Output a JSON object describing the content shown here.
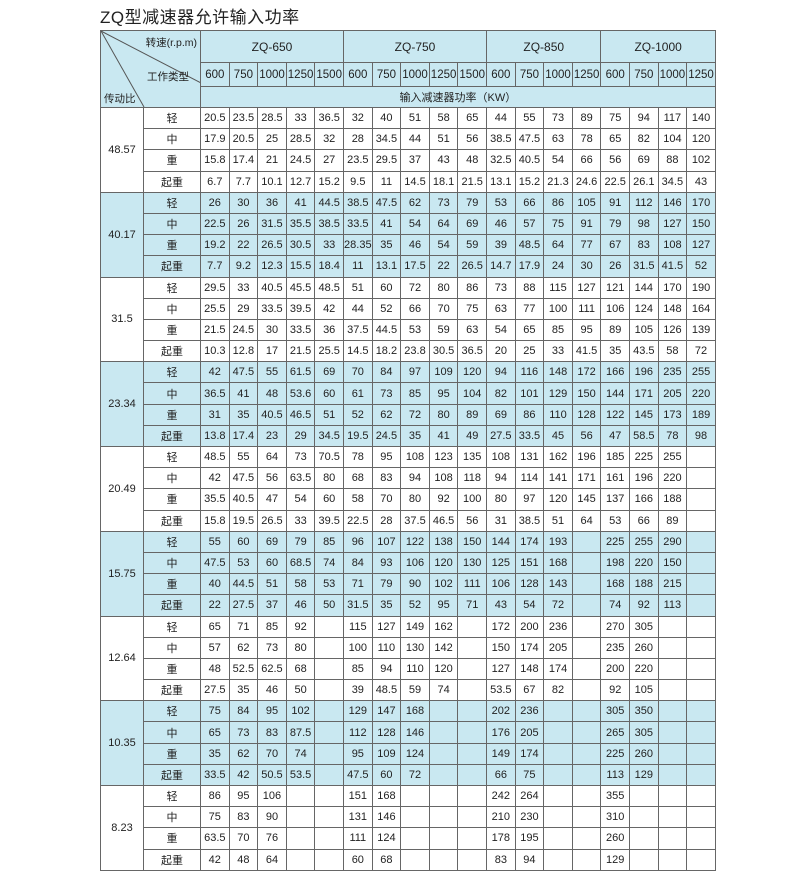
{
  "title": "ZQ型减速器允许输入功率",
  "header": {
    "speed_label": "转速(r.p.m)",
    "work_type_label": "工作类型",
    "ratio_label": "传动比",
    "unit_label": "输入减速器功率（KW）",
    "models": [
      {
        "name": "ZQ-650",
        "speeds": [
          "600",
          "750",
          "1000",
          "1250",
          "1500"
        ]
      },
      {
        "name": "ZQ-750",
        "speeds": [
          "600",
          "750",
          "1000",
          "1250",
          "1500"
        ]
      },
      {
        "name": "ZQ-850",
        "speeds": [
          "600",
          "750",
          "1000",
          "1250"
        ]
      },
      {
        "name": "ZQ-1000",
        "speeds": [
          "600",
          "750",
          "1000",
          "1250"
        ]
      }
    ]
  },
  "shade_color": "#c9e8f1",
  "groups": [
    {
      "ratio": "48.57",
      "shaded": false,
      "rows": [
        {
          "type": "轻",
          "values": [
            "20.5",
            "23.5",
            "28.5",
            "33",
            "36.5",
            "32",
            "40",
            "51",
            "58",
            "65",
            "44",
            "55",
            "73",
            "89",
            "75",
            "94",
            "117",
            "140"
          ]
        },
        {
          "type": "中",
          "values": [
            "17.9",
            "20.5",
            "25",
            "28.5",
            "32",
            "28",
            "34.5",
            "44",
            "51",
            "56",
            "38.5",
            "47.5",
            "63",
            "78",
            "65",
            "82",
            "104",
            "120"
          ]
        },
        {
          "type": "重",
          "values": [
            "15.8",
            "17.4",
            "21",
            "24.5",
            "27",
            "23.5",
            "29.5",
            "37",
            "43",
            "48",
            "32.5",
            "40.5",
            "54",
            "66",
            "56",
            "69",
            "88",
            "102"
          ]
        },
        {
          "type": "起重",
          "values": [
            "6.7",
            "7.7",
            "10.1",
            "12.7",
            "15.2",
            "9.5",
            "11",
            "14.5",
            "18.1",
            "21.5",
            "13.1",
            "15.2",
            "21.3",
            "24.6",
            "22.5",
            "26.1",
            "34.5",
            "43"
          ]
        }
      ]
    },
    {
      "ratio": "40.17",
      "shaded": true,
      "rows": [
        {
          "type": "轻",
          "values": [
            "26",
            "30",
            "36",
            "41",
            "44.5",
            "38.5",
            "47.5",
            "62",
            "73",
            "79",
            "53",
            "66",
            "86",
            "105",
            "91",
            "112",
            "146",
            "170"
          ]
        },
        {
          "type": "中",
          "values": [
            "22.5",
            "26",
            "31.5",
            "35.5",
            "38.5",
            "33.5",
            "41",
            "54",
            "64",
            "69",
            "46",
            "57",
            "75",
            "91",
            "79",
            "98",
            "127",
            "150"
          ]
        },
        {
          "type": "重",
          "values": [
            "19.2",
            "22",
            "26.5",
            "30.5",
            "33",
            "28.35",
            "35",
            "46",
            "54",
            "59",
            "39",
            "48.5",
            "64",
            "77",
            "67",
            "83",
            "108",
            "127"
          ]
        },
        {
          "type": "起重",
          "values": [
            "7.7",
            "9.2",
            "12.3",
            "15.5",
            "18.4",
            "11",
            "13.1",
            "17.5",
            "22",
            "26.5",
            "14.7",
            "17.9",
            "24",
            "30",
            "26",
            "31.5",
            "41.5",
            "52"
          ]
        }
      ]
    },
    {
      "ratio": "31.5",
      "shaded": false,
      "rows": [
        {
          "type": "轻",
          "values": [
            "29.5",
            "33",
            "40.5",
            "45.5",
            "48.5",
            "51",
            "60",
            "72",
            "80",
            "86",
            "73",
            "88",
            "115",
            "127",
            "121",
            "144",
            "170",
            "190"
          ]
        },
        {
          "type": "中",
          "values": [
            "25.5",
            "29",
            "33.5",
            "39.5",
            "42",
            "44",
            "52",
            "66",
            "70",
            "75",
            "63",
            "77",
            "100",
            "111",
            "106",
            "124",
            "148",
            "164"
          ]
        },
        {
          "type": "重",
          "values": [
            "21.5",
            "24.5",
            "30",
            "33.5",
            "36",
            "37.5",
            "44.5",
            "53",
            "59",
            "63",
            "54",
            "65",
            "85",
            "95",
            "89",
            "105",
            "126",
            "139"
          ]
        },
        {
          "type": "起重",
          "values": [
            "10.3",
            "12.8",
            "17",
            "21.5",
            "25.5",
            "14.5",
            "18.2",
            "23.8",
            "30.5",
            "36.5",
            "20",
            "25",
            "33",
            "41.5",
            "35",
            "43.5",
            "58",
            "72"
          ]
        }
      ]
    },
    {
      "ratio": "23.34",
      "shaded": true,
      "rows": [
        {
          "type": "轻",
          "values": [
            "42",
            "47.5",
            "55",
            "61.5",
            "69",
            "70",
            "84",
            "97",
            "109",
            "120",
            "94",
            "116",
            "148",
            "172",
            "166",
            "196",
            "235",
            "255"
          ]
        },
        {
          "type": "中",
          "values": [
            "36.5",
            "41",
            "48",
            "53.6",
            "60",
            "61",
            "73",
            "85",
            "95",
            "104",
            "82",
            "101",
            "129",
            "150",
            "144",
            "171",
            "205",
            "220"
          ]
        },
        {
          "type": "重",
          "values": [
            "31",
            "35",
            "40.5",
            "46.5",
            "51",
            "52",
            "62",
            "72",
            "80",
            "89",
            "69",
            "86",
            "110",
            "128",
            "122",
            "145",
            "173",
            "189"
          ]
        },
        {
          "type": "起重",
          "values": [
            "13.8",
            "17.4",
            "23",
            "29",
            "34.5",
            "19.5",
            "24.5",
            "35",
            "41",
            "49",
            "27.5",
            "33.5",
            "45",
            "56",
            "47",
            "58.5",
            "78",
            "98"
          ]
        }
      ]
    },
    {
      "ratio": "20.49",
      "shaded": false,
      "rows": [
        {
          "type": "轻",
          "values": [
            "48.5",
            "55",
            "64",
            "73",
            "70.5",
            "78",
            "95",
            "108",
            "123",
            "135",
            "108",
            "131",
            "162",
            "196",
            "185",
            "225",
            "255",
            ""
          ]
        },
        {
          "type": "中",
          "values": [
            "42",
            "47.5",
            "56",
            "63.5",
            "80",
            "68",
            "83",
            "94",
            "108",
            "118",
            "94",
            "114",
            "141",
            "171",
            "161",
            "196",
            "220",
            ""
          ]
        },
        {
          "type": "重",
          "values": [
            "35.5",
            "40.5",
            "47",
            "54",
            "60",
            "58",
            "70",
            "80",
            "92",
            "100",
            "80",
            "97",
            "120",
            "145",
            "137",
            "166",
            "188",
            ""
          ]
        },
        {
          "type": "起重",
          "values": [
            "15.8",
            "19.5",
            "26.5",
            "33",
            "39.5",
            "22.5",
            "28",
            "37.5",
            "46.5",
            "56",
            "31",
            "38.5",
            "51",
            "64",
            "53",
            "66",
            "89",
            ""
          ]
        }
      ]
    },
    {
      "ratio": "15.75",
      "shaded": true,
      "rows": [
        {
          "type": "轻",
          "values": [
            "55",
            "60",
            "69",
            "79",
            "85",
            "96",
            "107",
            "122",
            "138",
            "150",
            "144",
            "174",
            "193",
            "",
            "225",
            "255",
            "290",
            ""
          ]
        },
        {
          "type": "中",
          "values": [
            "47.5",
            "53",
            "60",
            "68.5",
            "74",
            "84",
            "93",
            "106",
            "120",
            "130",
            "125",
            "151",
            "168",
            "",
            "198",
            "220",
            "150",
            ""
          ]
        },
        {
          "type": "重",
          "values": [
            "40",
            "44.5",
            "51",
            "58",
            "53",
            "71",
            "79",
            "90",
            "102",
            "111",
            "106",
            "128",
            "143",
            "",
            "168",
            "188",
            "215",
            ""
          ]
        },
        {
          "type": "起重",
          "values": [
            "22",
            "27.5",
            "37",
            "46",
            "50",
            "31.5",
            "35",
            "52",
            "95",
            "71",
            "43",
            "54",
            "72",
            "",
            "74",
            "92",
            "113",
            ""
          ]
        }
      ]
    },
    {
      "ratio": "12.64",
      "shaded": false,
      "rows": [
        {
          "type": "轻",
          "values": [
            "65",
            "71",
            "85",
            "92",
            "",
            "115",
            "127",
            "149",
            "162",
            "",
            "172",
            "200",
            "236",
            "",
            "270",
            "305",
            "",
            ""
          ]
        },
        {
          "type": "中",
          "values": [
            "57",
            "62",
            "73",
            "80",
            "",
            "100",
            "110",
            "130",
            "142",
            "",
            "150",
            "174",
            "205",
            "",
            "235",
            "260",
            "",
            ""
          ]
        },
        {
          "type": "重",
          "values": [
            "48",
            "52.5",
            "62.5",
            "68",
            "",
            "85",
            "94",
            "110",
            "120",
            "",
            "127",
            "148",
            "174",
            "",
            "200",
            "220",
            "",
            ""
          ]
        },
        {
          "type": "起重",
          "values": [
            "27.5",
            "35",
            "46",
            "50",
            "",
            "39",
            "48.5",
            "59",
            "74",
            "",
            "53.5",
            "67",
            "82",
            "",
            "92",
            "105",
            "",
            ""
          ]
        }
      ]
    },
    {
      "ratio": "10.35",
      "shaded": true,
      "rows": [
        {
          "type": "轻",
          "values": [
            "75",
            "84",
            "95",
            "102",
            "",
            "129",
            "147",
            "168",
            "",
            "",
            "202",
            "236",
            "",
            "",
            "305",
            "350",
            "",
            ""
          ]
        },
        {
          "type": "中",
          "values": [
            "65",
            "73",
            "83",
            "87.5",
            "",
            "112",
            "128",
            "146",
            "",
            "",
            "176",
            "205",
            "",
            "",
            "265",
            "305",
            "",
            ""
          ]
        },
        {
          "type": "重",
          "values": [
            "35",
            "62",
            "70",
            "74",
            "",
            "95",
            "109",
            "124",
            "",
            "",
            "149",
            "174",
            "",
            "",
            "225",
            "260",
            "",
            ""
          ]
        },
        {
          "type": "起重",
          "values": [
            "33.5",
            "42",
            "50.5",
            "53.5",
            "",
            "47.5",
            "60",
            "72",
            "",
            "",
            "66",
            "75",
            "",
            "",
            "113",
            "129",
            "",
            ""
          ]
        }
      ]
    },
    {
      "ratio": "8.23",
      "shaded": false,
      "rows": [
        {
          "type": "轻",
          "values": [
            "86",
            "95",
            "106",
            "",
            "",
            "151",
            "168",
            "",
            "",
            "",
            "242",
            "264",
            "",
            "",
            "355",
            "",
            "",
            ""
          ]
        },
        {
          "type": "中",
          "values": [
            "75",
            "83",
            "90",
            "",
            "",
            "131",
            "146",
            "",
            "",
            "",
            "210",
            "230",
            "",
            "",
            "310",
            "",
            "",
            ""
          ]
        },
        {
          "type": "重",
          "values": [
            "63.5",
            "70",
            "76",
            "",
            "",
            "111",
            "124",
            "",
            "",
            "",
            "178",
            "195",
            "",
            "",
            "260",
            "",
            "",
            ""
          ]
        },
        {
          "type": "起重",
          "values": [
            "42",
            "48",
            "64",
            "",
            "",
            "60",
            "68",
            "",
            "",
            "",
            "83",
            "94",
            "",
            "",
            "129",
            "",
            "",
            ""
          ]
        }
      ]
    }
  ]
}
